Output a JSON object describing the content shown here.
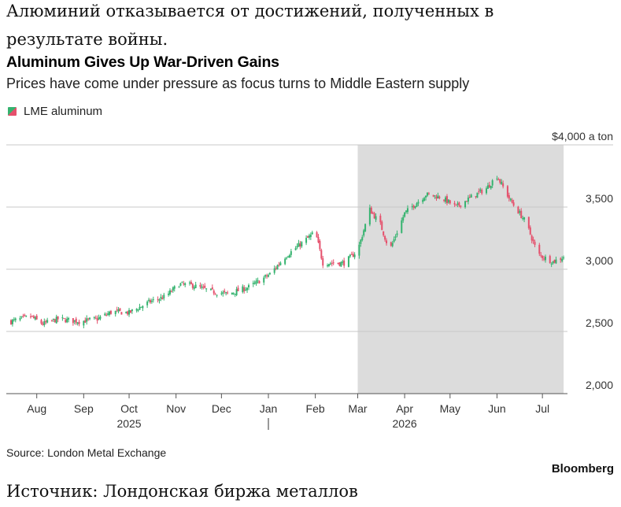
{
  "header": {
    "ru_title_line1": "Алюминий отказывается от достижений, полученных в",
    "ru_title_line2": "результате войны."
  },
  "footer": {
    "source": "Source: London Metal Exchange",
    "brand": "Bloomberg",
    "ru_source": "Источник: Лондонская биржа металлов"
  },
  "colors": {
    "up": "#35b36f",
    "down": "#e5506c",
    "shade": "#dcdcdc",
    "grid": "#c8c8c8"
  },
  "chart_data": {
    "type": "candlestick",
    "title": "Aluminum Gives Up War-Driven Gains",
    "subtitle": "Prices have come under pressure as focus turns to Middle Eastern supply",
    "legend": [
      {
        "name": "LME aluminum"
      }
    ],
    "legend_position": "top-left",
    "y_axis": {
      "position": "right",
      "ylim": [
        2000,
        4000
      ],
      "ticks": [
        {
          "value": 4000,
          "label": "$4,000 a ton"
        },
        {
          "value": 3500,
          "label": "3,500"
        },
        {
          "value": 3000,
          "label": "3,000"
        },
        {
          "value": 2500,
          "label": "2,500"
        },
        {
          "value": 2000,
          "label": "2,000"
        }
      ]
    },
    "x_axis": {
      "start": "2025-07-15",
      "end": "2026-07-16",
      "month_ticks": [
        {
          "date": "2025-08-01",
          "label": "Aug"
        },
        {
          "date": "2025-09-01",
          "label": "Sep"
        },
        {
          "date": "2025-10-01",
          "label": "Oct"
        },
        {
          "date": "2025-11-01",
          "label": "Nov"
        },
        {
          "date": "2025-12-01",
          "label": "Dec"
        },
        {
          "date": "2026-01-01",
          "label": "Jan"
        },
        {
          "date": "2026-02-01",
          "label": "Feb"
        },
        {
          "date": "2026-03-01",
          "label": "Mar"
        },
        {
          "date": "2026-04-01",
          "label": "Apr"
        },
        {
          "date": "2026-05-01",
          "label": "May"
        },
        {
          "date": "2026-06-01",
          "label": "Jun"
        },
        {
          "date": "2026-07-01",
          "label": "Jul"
        }
      ],
      "year_labels": [
        {
          "date": "2025-10-01",
          "label": "2025"
        },
        {
          "date": "2026-04-01",
          "label": "2026"
        }
      ],
      "year_divider": "2026-01-01"
    },
    "shaded_range": {
      "start": "2026-03-01",
      "end": "2026-07-15"
    },
    "grid": true,
    "price_path": [
      {
        "date": "2025-07-15",
        "close": 2580
      },
      {
        "date": "2025-07-28",
        "close": 2620
      },
      {
        "date": "2025-08-05",
        "close": 2560
      },
      {
        "date": "2025-08-15",
        "close": 2600
      },
      {
        "date": "2025-08-29",
        "close": 2580
      },
      {
        "date": "2025-09-10",
        "close": 2600
      },
      {
        "date": "2025-09-20",
        "close": 2660
      },
      {
        "date": "2025-10-01",
        "close": 2650
      },
      {
        "date": "2025-10-15",
        "close": 2740
      },
      {
        "date": "2025-10-25",
        "close": 2780
      },
      {
        "date": "2025-11-03",
        "close": 2880
      },
      {
        "date": "2025-11-12",
        "close": 2870
      },
      {
        "date": "2025-11-25",
        "close": 2820
      },
      {
        "date": "2025-12-05",
        "close": 2800
      },
      {
        "date": "2025-12-20",
        "close": 2860
      },
      {
        "date": "2026-01-02",
        "close": 2960
      },
      {
        "date": "2026-01-12",
        "close": 3100
      },
      {
        "date": "2026-01-22",
        "close": 3200
      },
      {
        "date": "2026-02-01",
        "close": 3300
      },
      {
        "date": "2026-02-06",
        "close": 3050
      },
      {
        "date": "2026-02-20",
        "close": 3050
      },
      {
        "date": "2026-03-01",
        "close": 3150
      },
      {
        "date": "2026-03-09",
        "close": 3480
      },
      {
        "date": "2026-03-16",
        "close": 3360
      },
      {
        "date": "2026-03-22",
        "close": 3150
      },
      {
        "date": "2026-04-01",
        "close": 3450
      },
      {
        "date": "2026-04-15",
        "close": 3600
      },
      {
        "date": "2026-04-25",
        "close": 3580
      },
      {
        "date": "2026-05-05",
        "close": 3500
      },
      {
        "date": "2026-05-15",
        "close": 3580
      },
      {
        "date": "2026-05-25",
        "close": 3650
      },
      {
        "date": "2026-06-01",
        "close": 3750
      },
      {
        "date": "2026-06-10",
        "close": 3550
      },
      {
        "date": "2026-06-20",
        "close": 3380
      },
      {
        "date": "2026-06-28",
        "close": 3120
      },
      {
        "date": "2026-07-08",
        "close": 3060
      },
      {
        "date": "2026-07-15",
        "close": 3100
      }
    ]
  }
}
